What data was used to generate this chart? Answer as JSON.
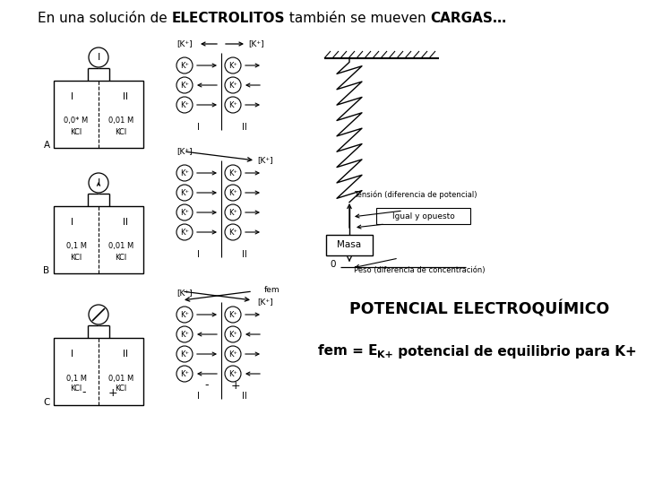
{
  "bg_color": "#ffffff",
  "title_normal1": "En una solución de ",
  "title_bold1": "ELECTROLITOS",
  "title_normal2": " también se mueven ",
  "title_bold2": "CARGAS…",
  "potencial_title": "POTENCIAL ELECTROQUÍMICO",
  "fem_main": "fem = E",
  "fem_sub": "K+",
  "fem_rest": " potencial de equilibrio para K+",
  "font_size_title": 11.0,
  "font_size_potencial": 12.5,
  "font_size_fem": 11.0
}
